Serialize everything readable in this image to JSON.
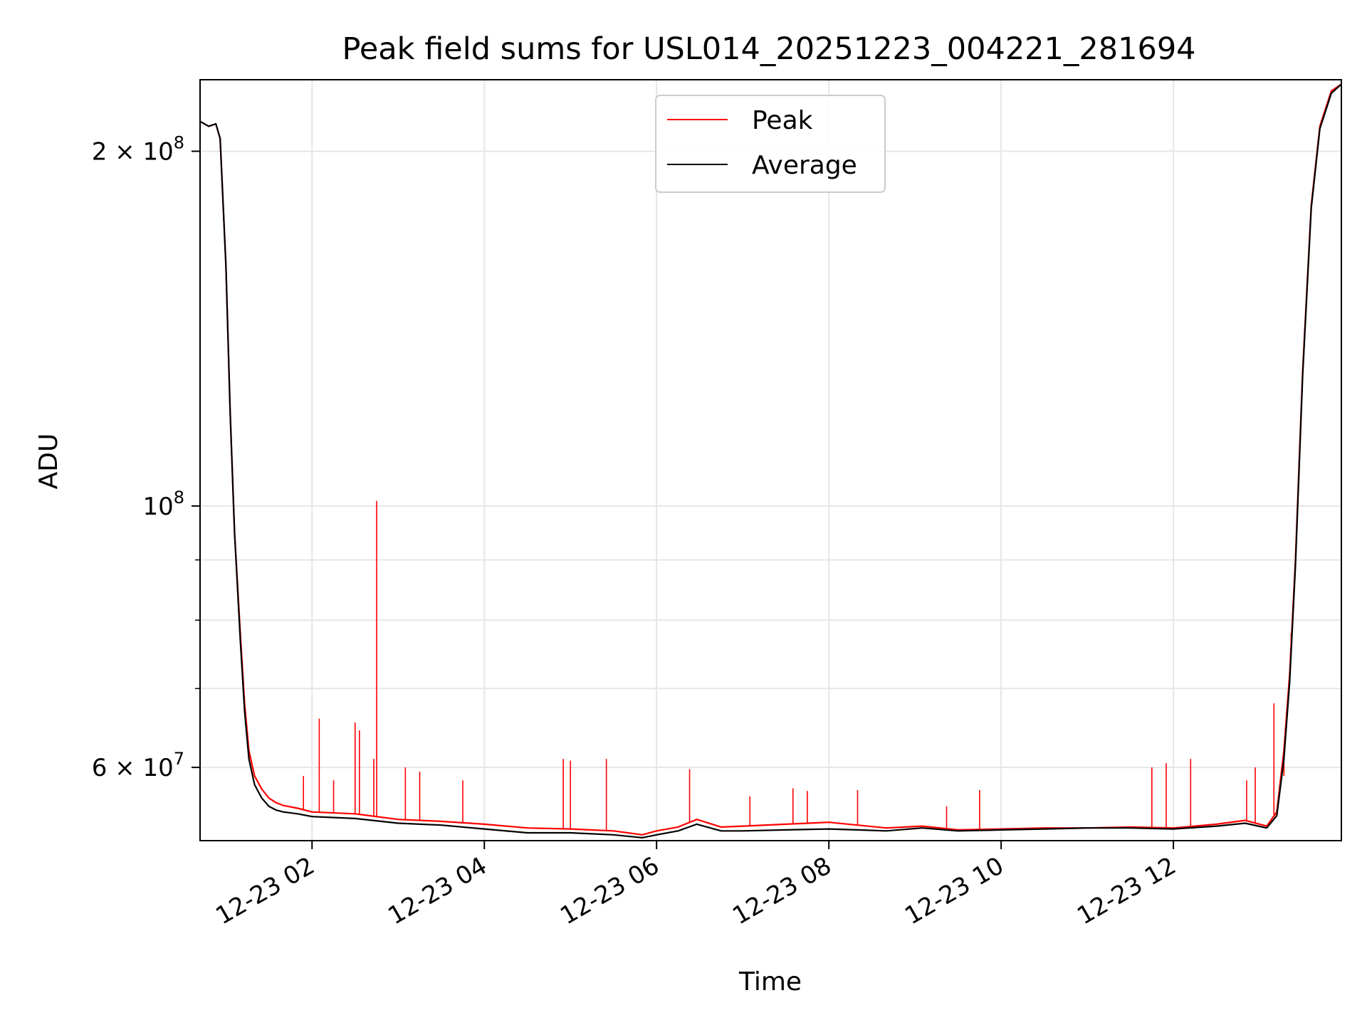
{
  "chart_data": {
    "type": "line",
    "title": "Peak field sums for USL014_20251223_004221_281694",
    "xlabel": "Time",
    "ylabel": "ADU",
    "yscale": "log",
    "grid": true,
    "legend_placement": "upper center",
    "xlim": [
      "2025-12-23 00:42",
      "2025-12-23 13:57"
    ],
    "ylim": [
      52000000,
      230000000
    ],
    "x_ticks": [
      {
        "x": "2025-12-23 02:00",
        "label": "12-23 02"
      },
      {
        "x": "2025-12-23 04:00",
        "label": "12-23 04"
      },
      {
        "x": "2025-12-23 06:00",
        "label": "12-23 06"
      },
      {
        "x": "2025-12-23 08:00",
        "label": "12-23 08"
      },
      {
        "x": "2025-12-23 10:00",
        "label": "12-23 10"
      },
      {
        "x": "2025-12-23 12:00",
        "label": "12-23 12"
      }
    ],
    "y_ticks": [
      {
        "y": 60000000,
        "base": "6 × 10",
        "exp": "7"
      },
      {
        "y": 100000000,
        "base": "10",
        "exp": "8"
      },
      {
        "y": 200000000,
        "base": "2 × 10",
        "exp": "8"
      }
    ],
    "y_minor_ticks": [
      70000000,
      80000000,
      90000000
    ],
    "series": [
      {
        "name": "Peak",
        "color": "#ff0000",
        "x": [
          "2025-12-23 00:42",
          "2025-12-23 00:48",
          "2025-12-23 00:53",
          "2025-12-23 00:56",
          "2025-12-23 01:00",
          "2025-12-23 01:03",
          "2025-12-23 01:06",
          "2025-12-23 01:10",
          "2025-12-23 01:13",
          "2025-12-23 01:16",
          "2025-12-23 01:20",
          "2025-12-23 01:25",
          "2025-12-23 01:30",
          "2025-12-23 01:35",
          "2025-12-23 01:40",
          "2025-12-23 01:50",
          "2025-12-23 02:00",
          "2025-12-23 02:30",
          "2025-12-23 03:00",
          "2025-12-23 03:30",
          "2025-12-23 04:00",
          "2025-12-23 04:30",
          "2025-12-23 05:00",
          "2025-12-23 05:30",
          "2025-12-23 05:50",
          "2025-12-23 06:00",
          "2025-12-23 06:15",
          "2025-12-23 06:28",
          "2025-12-23 06:45",
          "2025-12-23 07:00",
          "2025-12-23 07:30",
          "2025-12-23 08:00",
          "2025-12-23 08:20",
          "2025-12-23 08:40",
          "2025-12-23 09:05",
          "2025-12-23 09:30",
          "2025-12-23 10:00",
          "2025-12-23 10:30",
          "2025-12-23 11:00",
          "2025-12-23 11:30",
          "2025-12-23 12:00",
          "2025-12-23 12:30",
          "2025-12-23 12:50",
          "2025-12-23 13:05",
          "2025-12-23 13:12",
          "2025-12-23 13:17",
          "2025-12-23 13:21",
          "2025-12-23 13:25",
          "2025-12-23 13:30",
          "2025-12-23 13:36",
          "2025-12-23 13:42",
          "2025-12-23 13:50",
          "2025-12-23 13:57"
        ],
        "values": [
          212000000,
          210000000,
          211000000,
          205000000,
          160000000,
          120000000,
          95000000,
          78000000,
          68000000,
          62000000,
          59000000,
          57500000,
          56500000,
          56000000,
          55700000,
          55400000,
          55000000,
          54800000,
          54200000,
          54000000,
          53700000,
          53300000,
          53200000,
          53000000,
          52600000,
          53000000,
          53400000,
          54200000,
          53400000,
          53500000,
          53700000,
          53900000,
          53600000,
          53300000,
          53500000,
          53100000,
          53200000,
          53300000,
          53300000,
          53400000,
          53300000,
          53700000,
          54100000,
          53500000,
          55000000,
          62000000,
          72000000,
          90000000,
          130000000,
          180000000,
          210000000,
          225000000,
          228000000
        ]
      },
      {
        "name": "Average",
        "color": "#000000",
        "x": [
          "2025-12-23 00:42",
          "2025-12-23 00:48",
          "2025-12-23 00:53",
          "2025-12-23 00:56",
          "2025-12-23 01:00",
          "2025-12-23 01:03",
          "2025-12-23 01:06",
          "2025-12-23 01:10",
          "2025-12-23 01:13",
          "2025-12-23 01:16",
          "2025-12-23 01:20",
          "2025-12-23 01:25",
          "2025-12-23 01:30",
          "2025-12-23 01:35",
          "2025-12-23 01:40",
          "2025-12-23 01:50",
          "2025-12-23 02:00",
          "2025-12-23 02:30",
          "2025-12-23 03:00",
          "2025-12-23 03:30",
          "2025-12-23 04:00",
          "2025-12-23 04:30",
          "2025-12-23 05:00",
          "2025-12-23 05:30",
          "2025-12-23 05:50",
          "2025-12-23 06:00",
          "2025-12-23 06:15",
          "2025-12-23 06:28",
          "2025-12-23 06:45",
          "2025-12-23 07:00",
          "2025-12-23 07:30",
          "2025-12-23 08:00",
          "2025-12-23 08:20",
          "2025-12-23 08:40",
          "2025-12-23 09:05",
          "2025-12-23 09:30",
          "2025-12-23 10:00",
          "2025-12-23 10:30",
          "2025-12-23 11:00",
          "2025-12-23 11:30",
          "2025-12-23 12:00",
          "2025-12-23 12:30",
          "2025-12-23 12:50",
          "2025-12-23 13:05",
          "2025-12-23 13:12",
          "2025-12-23 13:17",
          "2025-12-23 13:21",
          "2025-12-23 13:25",
          "2025-12-23 13:30",
          "2025-12-23 13:36",
          "2025-12-23 13:42",
          "2025-12-23 13:50",
          "2025-12-23 13:57"
        ],
        "values": [
          212000000,
          210000000,
          211000000,
          205000000,
          160000000,
          120000000,
          95000000,
          77000000,
          67000000,
          61000000,
          58000000,
          56500000,
          55600000,
          55200000,
          55000000,
          54800000,
          54500000,
          54300000,
          53800000,
          53600000,
          53200000,
          52800000,
          52800000,
          52600000,
          52300000,
          52600000,
          53000000,
          53700000,
          53000000,
          53000000,
          53100000,
          53200000,
          53100000,
          53000000,
          53300000,
          53000000,
          53100000,
          53200000,
          53300000,
          53300000,
          53200000,
          53500000,
          53800000,
          53300000,
          54600000,
          61000000,
          71000000,
          89000000,
          129000000,
          179000000,
          209000000,
          224000000,
          228000000
        ]
      }
    ],
    "spikes": {
      "series": "Peak",
      "points": [
        {
          "x": "2025-12-23 01:54",
          "y": 59000000
        },
        {
          "x": "2025-12-23 02:05",
          "y": 66000000
        },
        {
          "x": "2025-12-23 02:15",
          "y": 58500000
        },
        {
          "x": "2025-12-23 02:30",
          "y": 65500000
        },
        {
          "x": "2025-12-23 02:33",
          "y": 64500000
        },
        {
          "x": "2025-12-23 02:43",
          "y": 61000000
        },
        {
          "x": "2025-12-23 02:45",
          "y": 101000000
        },
        {
          "x": "2025-12-23 03:05",
          "y": 60000000
        },
        {
          "x": "2025-12-23 03:15",
          "y": 59500000
        },
        {
          "x": "2025-12-23 03:45",
          "y": 58500000
        },
        {
          "x": "2025-12-23 04:55",
          "y": 61000000
        },
        {
          "x": "2025-12-23 05:00",
          "y": 60800000
        },
        {
          "x": "2025-12-23 05:25",
          "y": 61000000
        },
        {
          "x": "2025-12-23 06:23",
          "y": 59800000
        },
        {
          "x": "2025-12-23 07:05",
          "y": 56700000
        },
        {
          "x": "2025-12-23 07:35",
          "y": 57600000
        },
        {
          "x": "2025-12-23 07:45",
          "y": 57300000
        },
        {
          "x": "2025-12-23 08:20",
          "y": 57400000
        },
        {
          "x": "2025-12-23 09:22",
          "y": 55600000
        },
        {
          "x": "2025-12-23 09:45",
          "y": 57400000
        },
        {
          "x": "2025-12-23 11:45",
          "y": 60000000
        },
        {
          "x": "2025-12-23 11:55",
          "y": 60500000
        },
        {
          "x": "2025-12-23 12:12",
          "y": 61000000
        },
        {
          "x": "2025-12-23 12:51",
          "y": 58500000
        },
        {
          "x": "2025-12-23 12:57",
          "y": 60000000
        },
        {
          "x": "2025-12-23 13:10",
          "y": 68000000
        },
        {
          "x": "2025-12-23 13:17",
          "y": 59000000
        },
        {
          "x": "2025-12-23 13:22",
          "y": 78000000
        }
      ]
    },
    "legend": [
      {
        "label": "Peak",
        "color": "#ff0000"
      },
      {
        "label": "Average",
        "color": "#000000"
      }
    ]
  }
}
